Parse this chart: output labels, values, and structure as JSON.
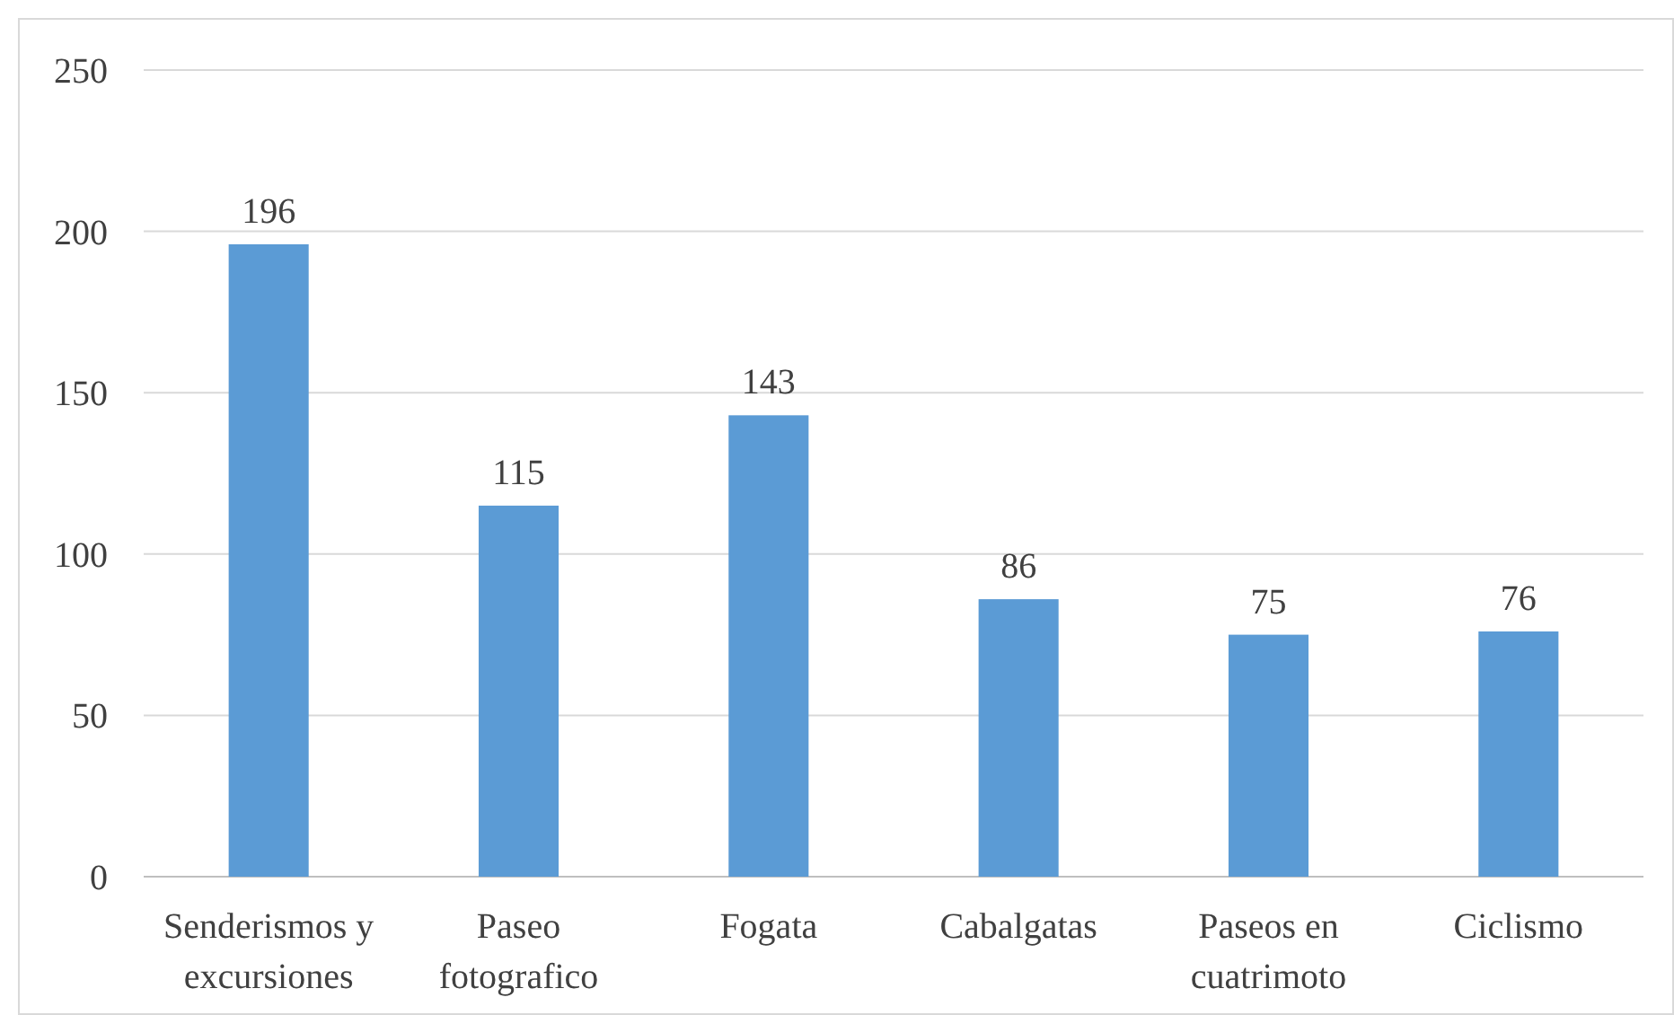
{
  "chart_data": {
    "type": "bar",
    "categories": [
      "Senderismos y excursiones",
      "Paseo fotografico",
      "Fogata",
      "Cabalgatas",
      "Paseos en cuatrimoto",
      "Ciclismo"
    ],
    "values": [
      196,
      115,
      143,
      86,
      75,
      76
    ],
    "color": "#5b9bd5",
    "ylim": [
      0,
      250
    ],
    "yticks": [
      0,
      50,
      100,
      150,
      200,
      250
    ],
    "grid": "y",
    "data_labels": true
  }
}
